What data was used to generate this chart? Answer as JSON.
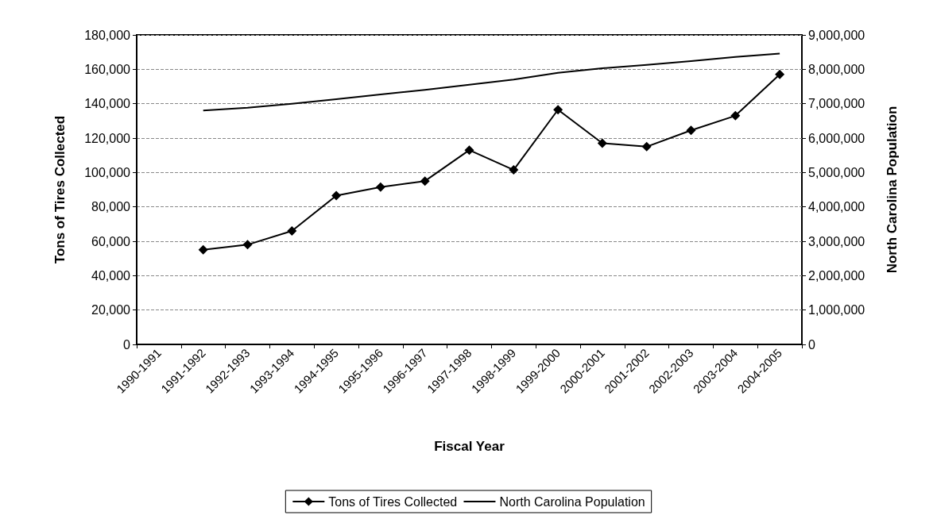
{
  "chart_data": {
    "type": "line",
    "xlabel": "Fiscal Year",
    "ylabel": "Tons of Tires Collected",
    "y2label": "North Carolina Population",
    "categories": [
      "1990-1991",
      "1991-1992",
      "1992-1993",
      "1993-1994",
      "1994-1995",
      "1995-1996",
      "1996-1997",
      "1997-1998",
      "1998-1999",
      "1999-2000",
      "2000-2001",
      "2001-2002",
      "2002-2003",
      "2003-2004",
      "2004-2005"
    ],
    "series": [
      {
        "name": "Tons of Tires Collected",
        "color": "#000000",
        "marker": "diamond",
        "values": [
          null,
          55000,
          58000,
          66000,
          86500,
          91500,
          95000,
          113000,
          101500,
          136500,
          117000,
          115000,
          124500,
          133000,
          157000
        ]
      },
      {
        "name": "North Carolina Population",
        "color": "#000000",
        "marker": "none",
        "axis": "y2",
        "values": [
          null,
          6800000,
          6880000,
          7000000,
          7130000,
          7270000,
          7400000,
          7550000,
          7700000,
          7900000,
          8030000,
          8130000,
          8240000,
          8360000,
          8460000
        ]
      }
    ],
    "ylim": [
      0,
      180000
    ],
    "yticks": [
      0,
      {
        "value": 20000,
        "label": "20,000"
      },
      {
        "value": 40000,
        "label": "40,000"
      },
      {
        "value": 60000,
        "label": "60,000"
      },
      {
        "value": 80000,
        "label": "80,000"
      },
      {
        "value": 100000,
        "label": "100,000"
      },
      {
        "value": 120000,
        "label": "120,000"
      },
      {
        "value": 140000,
        "label": "140,000"
      },
      {
        "value": 160000,
        "label": "160,000"
      },
      {
        "value": 180000,
        "label": "180,000"
      }
    ],
    "y2lim": [
      0,
      9000000
    ],
    "y2ticks": [
      0,
      {
        "value": 1000000,
        "label": "1,000,000"
      },
      {
        "value": 2000000,
        "label": "2,000,000"
      },
      {
        "value": 3000000,
        "label": "3,000,000"
      },
      {
        "value": 4000000,
        "label": "4,000,000"
      },
      {
        "value": 5000000,
        "label": "5,000,000"
      },
      {
        "value": 6000000,
        "label": "6,000,000"
      },
      {
        "value": 7000000,
        "label": "7,000,000"
      },
      {
        "value": 8000000,
        "label": "8,000,000"
      },
      {
        "value": 9000000,
        "label": "9,000,000"
      }
    ],
    "grid": "y",
    "legend": "bottom",
    "line_style": "solid"
  }
}
